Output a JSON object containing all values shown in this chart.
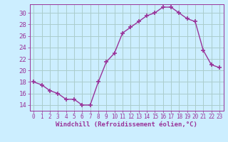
{
  "x": [
    0,
    1,
    2,
    3,
    4,
    5,
    6,
    7,
    8,
    9,
    10,
    11,
    12,
    13,
    14,
    15,
    16,
    17,
    18,
    19,
    20,
    21,
    22,
    23
  ],
  "y": [
    18,
    17.5,
    16.5,
    16,
    15,
    15,
    14,
    14,
    18,
    21.5,
    23,
    26.5,
    27.5,
    28.5,
    29.5,
    30,
    31,
    31,
    30,
    29,
    28.5,
    23.5,
    21,
    20.5
  ],
  "line_color": "#993399",
  "bg_color": "#cceeff",
  "grid_color": "#aacccc",
  "xlabel": "Windchill (Refroidissement éolien,°C)",
  "ylim": [
    13.0,
    31.5
  ],
  "xlim": [
    -0.5,
    23.5
  ],
  "yticks": [
    14,
    16,
    18,
    20,
    22,
    24,
    26,
    28,
    30
  ],
  "xticks": [
    0,
    1,
    2,
    3,
    4,
    5,
    6,
    7,
    8,
    9,
    10,
    11,
    12,
    13,
    14,
    15,
    16,
    17,
    18,
    19,
    20,
    21,
    22,
    23
  ],
  "marker": "+",
  "linewidth": 1.0,
  "markersize": 4,
  "markeredgewidth": 1.2,
  "tick_color": "#993399",
  "label_color": "#993399",
  "xlabel_fontsize": 6.5,
  "ytick_fontsize": 6.5,
  "xtick_fontsize": 5.5
}
